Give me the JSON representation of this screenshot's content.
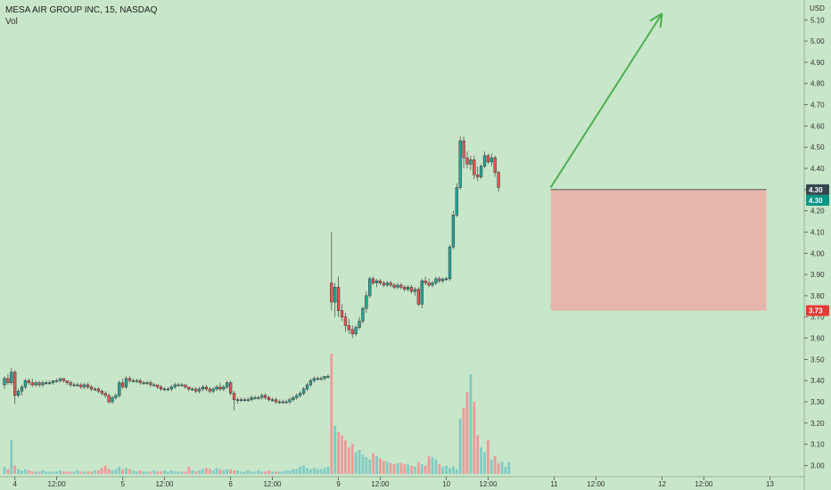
{
  "legend": {
    "symbol_line": "MESA AIR GROUP INC, 15, NASDAQ",
    "volume_label": "Vol"
  },
  "colors": {
    "background": "#c8e6c9",
    "up_candle": "#26a69a",
    "down_candle": "#ef5350",
    "up_volume": "#80cbc4",
    "down_volume": "#ef9a9a",
    "arrow": "#4caf50",
    "stop_zone": "#f0a5a0",
    "price_tag_current": "#009688",
    "price_tag_stop": "#e53935"
  },
  "chart_data": {
    "type": "candlestick",
    "currency_label": "USD",
    "y_ticks": [
      "5.10",
      "5.00",
      "4.90",
      "4.80",
      "4.70",
      "4.60",
      "4.50",
      "4.40",
      "4.30",
      "4.20",
      "4.10",
      "4.00",
      "3.90",
      "3.80",
      "3.70",
      "3.60",
      "3.50",
      "3.40",
      "3.30",
      "3.20",
      "3.10",
      "3.00"
    ],
    "ylim": [
      2.96,
      5.16
    ],
    "x_ticks": [
      {
        "label": "4",
        "bar": 3
      },
      {
        "label": "12:00",
        "bar": 15
      },
      {
        "label": "5",
        "bar": 34
      },
      {
        "label": "12:00",
        "bar": 46
      },
      {
        "label": "6",
        "bar": 65
      },
      {
        "label": "12:00",
        "bar": 77
      },
      {
        "label": "9",
        "bar": 96
      },
      {
        "label": "12:00",
        "bar": 108
      },
      {
        "label": "10",
        "bar": 127
      },
      {
        "label": "12:00",
        "bar": 139
      },
      {
        "label": "11",
        "bar": 158
      },
      {
        "label": "12:00",
        "bar": 170
      },
      {
        "label": "12",
        "bar": 189
      },
      {
        "label": "12:00",
        "bar": 201
      },
      {
        "label": "13",
        "bar": 220
      }
    ],
    "bar_count_span": 225,
    "price_tags": [
      {
        "label": "4.30",
        "value": 4.3,
        "kind": "current_outline"
      },
      {
        "label": "4.30",
        "value": 4.3,
        "kind": "current"
      },
      {
        "label": "3.73",
        "value": 3.73,
        "kind": "stop"
      }
    ],
    "annotations": {
      "arrow": {
        "from_bar": 157,
        "from_price": 4.31,
        "to_bar": 189,
        "to_price": 5.13
      },
      "stop_zone": {
        "from_bar": 157,
        "to_bar": 219,
        "top": 4.3,
        "bottom": 3.73
      }
    },
    "candles": [
      [
        3.38,
        3.42,
        3.36,
        3.41
      ],
      [
        3.41,
        3.43,
        3.38,
        3.39
      ],
      [
        3.39,
        3.46,
        3.38,
        3.44
      ],
      [
        3.44,
        3.45,
        3.29,
        3.33
      ],
      [
        3.33,
        3.36,
        3.32,
        3.35
      ],
      [
        3.35,
        3.38,
        3.33,
        3.37
      ],
      [
        3.37,
        3.41,
        3.36,
        3.4
      ],
      [
        3.4,
        3.41,
        3.38,
        3.39
      ],
      [
        3.39,
        3.41,
        3.37,
        3.38
      ],
      [
        3.38,
        3.4,
        3.37,
        3.39
      ],
      [
        3.39,
        3.4,
        3.37,
        3.38
      ],
      [
        3.38,
        3.4,
        3.37,
        3.39
      ],
      [
        3.39,
        3.4,
        3.38,
        3.39
      ],
      [
        3.39,
        3.4,
        3.38,
        3.39
      ],
      [
        3.39,
        3.4,
        3.38,
        3.4
      ],
      [
        3.4,
        3.41,
        3.39,
        3.4
      ],
      [
        3.4,
        3.41,
        3.39,
        3.41
      ],
      [
        3.41,
        3.41,
        3.39,
        3.4
      ],
      [
        3.4,
        3.4,
        3.38,
        3.39
      ],
      [
        3.39,
        3.4,
        3.37,
        3.38
      ],
      [
        3.38,
        3.39,
        3.37,
        3.38
      ],
      [
        3.38,
        3.39,
        3.37,
        3.38
      ],
      [
        3.38,
        3.39,
        3.36,
        3.37
      ],
      [
        3.37,
        3.39,
        3.36,
        3.38
      ],
      [
        3.38,
        3.39,
        3.36,
        3.37
      ],
      [
        3.37,
        3.38,
        3.35,
        3.36
      ],
      [
        3.36,
        3.37,
        3.35,
        3.36
      ],
      [
        3.36,
        3.37,
        3.34,
        3.35
      ],
      [
        3.35,
        3.36,
        3.33,
        3.34
      ],
      [
        3.34,
        3.35,
        3.32,
        3.33
      ],
      [
        3.33,
        3.34,
        3.29,
        3.3
      ],
      [
        3.3,
        3.33,
        3.29,
        3.32
      ],
      [
        3.32,
        3.34,
        3.31,
        3.33
      ],
      [
        3.33,
        3.4,
        3.32,
        3.39
      ],
      [
        3.39,
        3.41,
        3.36,
        3.37
      ],
      [
        3.37,
        3.42,
        3.36,
        3.41
      ],
      [
        3.41,
        3.42,
        3.39,
        3.4
      ],
      [
        3.4,
        3.41,
        3.39,
        3.4
      ],
      [
        3.4,
        3.41,
        3.39,
        3.4
      ],
      [
        3.4,
        3.41,
        3.38,
        3.39
      ],
      [
        3.39,
        3.4,
        3.38,
        3.39
      ],
      [
        3.39,
        3.4,
        3.38,
        3.39
      ],
      [
        3.39,
        3.4,
        3.37,
        3.38
      ],
      [
        3.38,
        3.39,
        3.37,
        3.38
      ],
      [
        3.38,
        3.38,
        3.36,
        3.37
      ],
      [
        3.37,
        3.38,
        3.35,
        3.36
      ],
      [
        3.36,
        3.37,
        3.35,
        3.36
      ],
      [
        3.36,
        3.37,
        3.35,
        3.36
      ],
      [
        3.36,
        3.38,
        3.35,
        3.37
      ],
      [
        3.37,
        3.39,
        3.36,
        3.38
      ],
      [
        3.38,
        3.39,
        3.37,
        3.38
      ],
      [
        3.38,
        3.39,
        3.37,
        3.38
      ],
      [
        3.38,
        3.38,
        3.36,
        3.37
      ],
      [
        3.37,
        3.37,
        3.35,
        3.36
      ],
      [
        3.36,
        3.37,
        3.35,
        3.36
      ],
      [
        3.36,
        3.37,
        3.34,
        3.35
      ],
      [
        3.35,
        3.37,
        3.34,
        3.36
      ],
      [
        3.36,
        3.38,
        3.35,
        3.37
      ],
      [
        3.37,
        3.38,
        3.35,
        3.36
      ],
      [
        3.36,
        3.37,
        3.34,
        3.35
      ],
      [
        3.35,
        3.37,
        3.34,
        3.36
      ],
      [
        3.36,
        3.38,
        3.35,
        3.37
      ],
      [
        3.37,
        3.39,
        3.35,
        3.36
      ],
      [
        3.36,
        3.38,
        3.35,
        3.37
      ],
      [
        3.37,
        3.4,
        3.36,
        3.39
      ],
      [
        3.39,
        3.4,
        3.33,
        3.34
      ],
      [
        3.34,
        3.35,
        3.26,
        3.31
      ],
      [
        3.31,
        3.32,
        3.29,
        3.31
      ],
      [
        3.31,
        3.32,
        3.3,
        3.31
      ],
      [
        3.31,
        3.32,
        3.3,
        3.31
      ],
      [
        3.31,
        3.32,
        3.3,
        3.31
      ],
      [
        3.31,
        3.33,
        3.3,
        3.32
      ],
      [
        3.32,
        3.33,
        3.31,
        3.32
      ],
      [
        3.32,
        3.33,
        3.31,
        3.32
      ],
      [
        3.32,
        3.34,
        3.31,
        3.33
      ],
      [
        3.33,
        3.34,
        3.31,
        3.32
      ],
      [
        3.32,
        3.33,
        3.3,
        3.31
      ],
      [
        3.31,
        3.32,
        3.3,
        3.31
      ],
      [
        3.31,
        3.32,
        3.29,
        3.3
      ],
      [
        3.3,
        3.31,
        3.29,
        3.3
      ],
      [
        3.3,
        3.31,
        3.29,
        3.3
      ],
      [
        3.3,
        3.31,
        3.29,
        3.3
      ],
      [
        3.3,
        3.32,
        3.29,
        3.31
      ],
      [
        3.31,
        3.33,
        3.3,
        3.32
      ],
      [
        3.32,
        3.34,
        3.31,
        3.33
      ],
      [
        3.33,
        3.35,
        3.32,
        3.34
      ],
      [
        3.34,
        3.37,
        3.33,
        3.36
      ],
      [
        3.36,
        3.39,
        3.35,
        3.38
      ],
      [
        3.38,
        3.41,
        3.37,
        3.4
      ],
      [
        3.4,
        3.42,
        3.39,
        3.41
      ],
      [
        3.41,
        3.42,
        3.4,
        3.41
      ],
      [
        3.41,
        3.42,
        3.4,
        3.41
      ],
      [
        3.41,
        3.42,
        3.4,
        3.42
      ],
      [
        3.42,
        3.43,
        3.41,
        3.42
      ],
      [
        3.86,
        4.1,
        3.73,
        3.77
      ],
      [
        3.77,
        3.86,
        3.7,
        3.84
      ],
      [
        3.84,
        3.89,
        3.7,
        3.73
      ],
      [
        3.73,
        3.76,
        3.68,
        3.7
      ],
      [
        3.7,
        3.72,
        3.63,
        3.66
      ],
      [
        3.66,
        3.69,
        3.62,
        3.64
      ],
      [
        3.64,
        3.66,
        3.6,
        3.62
      ],
      [
        3.62,
        3.66,
        3.61,
        3.65
      ],
      [
        3.65,
        3.7,
        3.64,
        3.68
      ],
      [
        3.68,
        3.75,
        3.67,
        3.74
      ],
      [
        3.74,
        3.82,
        3.72,
        3.8
      ],
      [
        3.8,
        3.89,
        3.79,
        3.88
      ],
      [
        3.88,
        3.89,
        3.85,
        3.86
      ],
      [
        3.86,
        3.88,
        3.84,
        3.87
      ],
      [
        3.87,
        3.88,
        3.85,
        3.86
      ],
      [
        3.86,
        3.87,
        3.84,
        3.85
      ],
      [
        3.85,
        3.87,
        3.84,
        3.86
      ],
      [
        3.86,
        3.87,
        3.84,
        3.85
      ],
      [
        3.85,
        3.86,
        3.83,
        3.84
      ],
      [
        3.84,
        3.86,
        3.83,
        3.85
      ],
      [
        3.85,
        3.86,
        3.83,
        3.84
      ],
      [
        3.84,
        3.85,
        3.82,
        3.83
      ],
      [
        3.83,
        3.85,
        3.82,
        3.84
      ],
      [
        3.84,
        3.85,
        3.81,
        3.82
      ],
      [
        3.82,
        3.84,
        3.8,
        3.83
      ],
      [
        3.83,
        3.84,
        3.75,
        3.76
      ],
      [
        3.76,
        3.88,
        3.74,
        3.87
      ],
      [
        3.87,
        3.89,
        3.85,
        3.86
      ],
      [
        3.86,
        3.88,
        3.84,
        3.85
      ],
      [
        3.85,
        3.87,
        3.84,
        3.86
      ],
      [
        3.86,
        3.89,
        3.85,
        3.88
      ],
      [
        3.88,
        3.89,
        3.86,
        3.87
      ],
      [
        3.87,
        3.88,
        3.86,
        3.88
      ],
      [
        3.88,
        3.89,
        3.87,
        3.88
      ],
      [
        3.88,
        4.04,
        3.87,
        4.03
      ],
      [
        4.03,
        4.2,
        4.02,
        4.18
      ],
      [
        4.18,
        4.33,
        4.17,
        4.31
      ],
      [
        4.31,
        4.55,
        4.3,
        4.53
      ],
      [
        4.53,
        4.55,
        4.4,
        4.45
      ],
      [
        4.45,
        4.48,
        4.4,
        4.42
      ],
      [
        4.42,
        4.46,
        4.39,
        4.44
      ],
      [
        4.44,
        4.46,
        4.35,
        4.37
      ],
      [
        4.37,
        4.41,
        4.34,
        4.36
      ],
      [
        4.36,
        4.42,
        4.35,
        4.41
      ],
      [
        4.41,
        4.48,
        4.4,
        4.46
      ],
      [
        4.46,
        4.47,
        4.42,
        4.43
      ],
      [
        4.43,
        4.47,
        4.41,
        4.45
      ],
      [
        4.45,
        4.46,
        4.36,
        4.38
      ],
      [
        4.38,
        4.39,
        4.29,
        4.31
      ]
    ],
    "volume_max": 1.0,
    "volume": [
      0.06,
      0.04,
      0.28,
      0.07,
      0.04,
      0.03,
      0.04,
      0.03,
      0.02,
      0.02,
      0.02,
      0.03,
      0.02,
      0.02,
      0.02,
      0.02,
      0.03,
      0.02,
      0.02,
      0.02,
      0.02,
      0.03,
      0.02,
      0.02,
      0.02,
      0.02,
      0.03,
      0.03,
      0.05,
      0.07,
      0.04,
      0.03,
      0.04,
      0.06,
      0.04,
      0.05,
      0.04,
      0.03,
      0.02,
      0.03,
      0.02,
      0.02,
      0.02,
      0.03,
      0.02,
      0.02,
      0.03,
      0.02,
      0.03,
      0.02,
      0.02,
      0.02,
      0.02,
      0.06,
      0.03,
      0.02,
      0.03,
      0.04,
      0.05,
      0.04,
      0.03,
      0.05,
      0.04,
      0.03,
      0.04,
      0.04,
      0.03,
      0.03,
      0.02,
      0.02,
      0.03,
      0.02,
      0.02,
      0.03,
      0.02,
      0.02,
      0.03,
      0.02,
      0.02,
      0.02,
      0.02,
      0.03,
      0.03,
      0.04,
      0.04,
      0.06,
      0.07,
      0.05,
      0.04,
      0.05,
      0.04,
      0.04,
      0.05,
      0.06,
      1.0,
      0.4,
      0.35,
      0.32,
      0.28,
      0.22,
      0.25,
      0.18,
      0.2,
      0.16,
      0.14,
      0.12,
      0.17,
      0.15,
      0.13,
      0.11,
      0.1,
      0.09,
      0.08,
      0.09,
      0.09,
      0.08,
      0.08,
      0.07,
      0.06,
      0.1,
      0.08,
      0.07,
      0.15,
      0.14,
      0.12,
      0.08,
      0.06,
      0.07,
      0.05,
      0.06,
      0.04,
      0.46,
      0.55,
      0.68,
      0.83,
      0.6,
      0.32,
      0.22,
      0.18,
      0.28,
      0.12,
      0.15,
      0.09,
      0.1,
      0.06,
      0.1
    ]
  }
}
